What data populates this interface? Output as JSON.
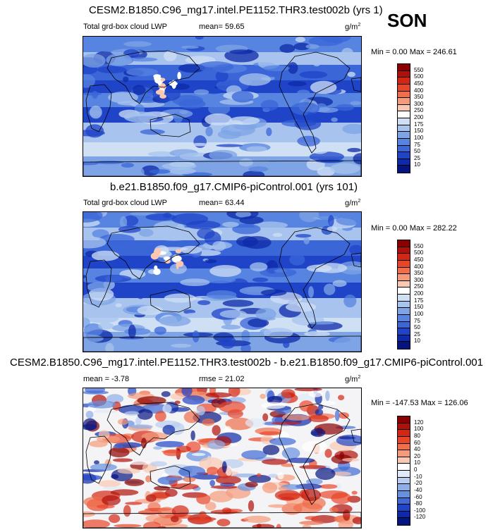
{
  "season": "SON",
  "panels": [
    {
      "title": "CESM2.B1850.C96_mg17.intel.PE1152.THR3.test002b (yrs 1)",
      "left_label": "Total grd-box cloud LWP",
      "stat_label": "mean=  59.65",
      "unit": "g/m",
      "unit_exp": "2",
      "minmax": "Min =   0.00 Max = 246.61",
      "legend_levels": [
        "550",
        "500",
        "450",
        "400",
        "350",
        "300",
        "250",
        "200",
        "175",
        "150",
        "100",
        "75",
        "50",
        "25",
        "10"
      ],
      "legend_colors": [
        "#8b0000",
        "#b0100a",
        "#d42614",
        "#e8462a",
        "#f06e4c",
        "#f59a7a",
        "#fac8b0",
        "#ffffff",
        "#cfe0f5",
        "#a8c4ee",
        "#7ea4e6",
        "#5784e0",
        "#3a66d8",
        "#1f44c8",
        "#0e2aa8",
        "#061480"
      ],
      "map_palette": "lwp"
    },
    {
      "title": "b.e21.B1850.f09_g17.CMIP6-piControl.001 (yrs 101)",
      "left_label": "Total grd-box cloud LWP",
      "stat_label": "mean=  63.44",
      "unit": "g/m",
      "unit_exp": "2",
      "minmax": "Min =   0.00 Max = 282.22",
      "legend_levels": [
        "550",
        "500",
        "450",
        "400",
        "350",
        "300",
        "250",
        "200",
        "175",
        "150",
        "100",
        "75",
        "50",
        "25",
        "10"
      ],
      "legend_colors": [
        "#8b0000",
        "#b0100a",
        "#d42614",
        "#e8462a",
        "#f06e4c",
        "#f59a7a",
        "#fac8b0",
        "#ffffff",
        "#cfe0f5",
        "#a8c4ee",
        "#7ea4e6",
        "#5784e0",
        "#3a66d8",
        "#1f44c8",
        "#0e2aa8",
        "#061480"
      ],
      "map_palette": "lwp"
    },
    {
      "title": "CESM2.B1850.C96_mg17.intel.PE1152.THR3.test002b - b.e21.B1850.f09_g17.CMIP6-piControl.001",
      "left_label": "mean =  -3.78",
      "stat_label": "rmse =  21.02",
      "unit": "g/m",
      "unit_exp": "2",
      "minmax": "Min = -147.53 Max = 126.06",
      "legend_levels": [
        "120",
        "100",
        "80",
        "60",
        "40",
        "20",
        "10",
        "0",
        "-10",
        "-20",
        "-40",
        "-60",
        "-80",
        "-100",
        "-120"
      ],
      "legend_colors": [
        "#8b0000",
        "#b0100a",
        "#d42614",
        "#e8462a",
        "#f06e4c",
        "#f59a7a",
        "#fac8b0",
        "#ffffff",
        "#e0eaf8",
        "#b8cdf0",
        "#8eaee8",
        "#6690e0",
        "#3f6ad6",
        "#1f44c8",
        "#0e2aa8",
        "#061480"
      ],
      "map_palette": "diff"
    }
  ]
}
